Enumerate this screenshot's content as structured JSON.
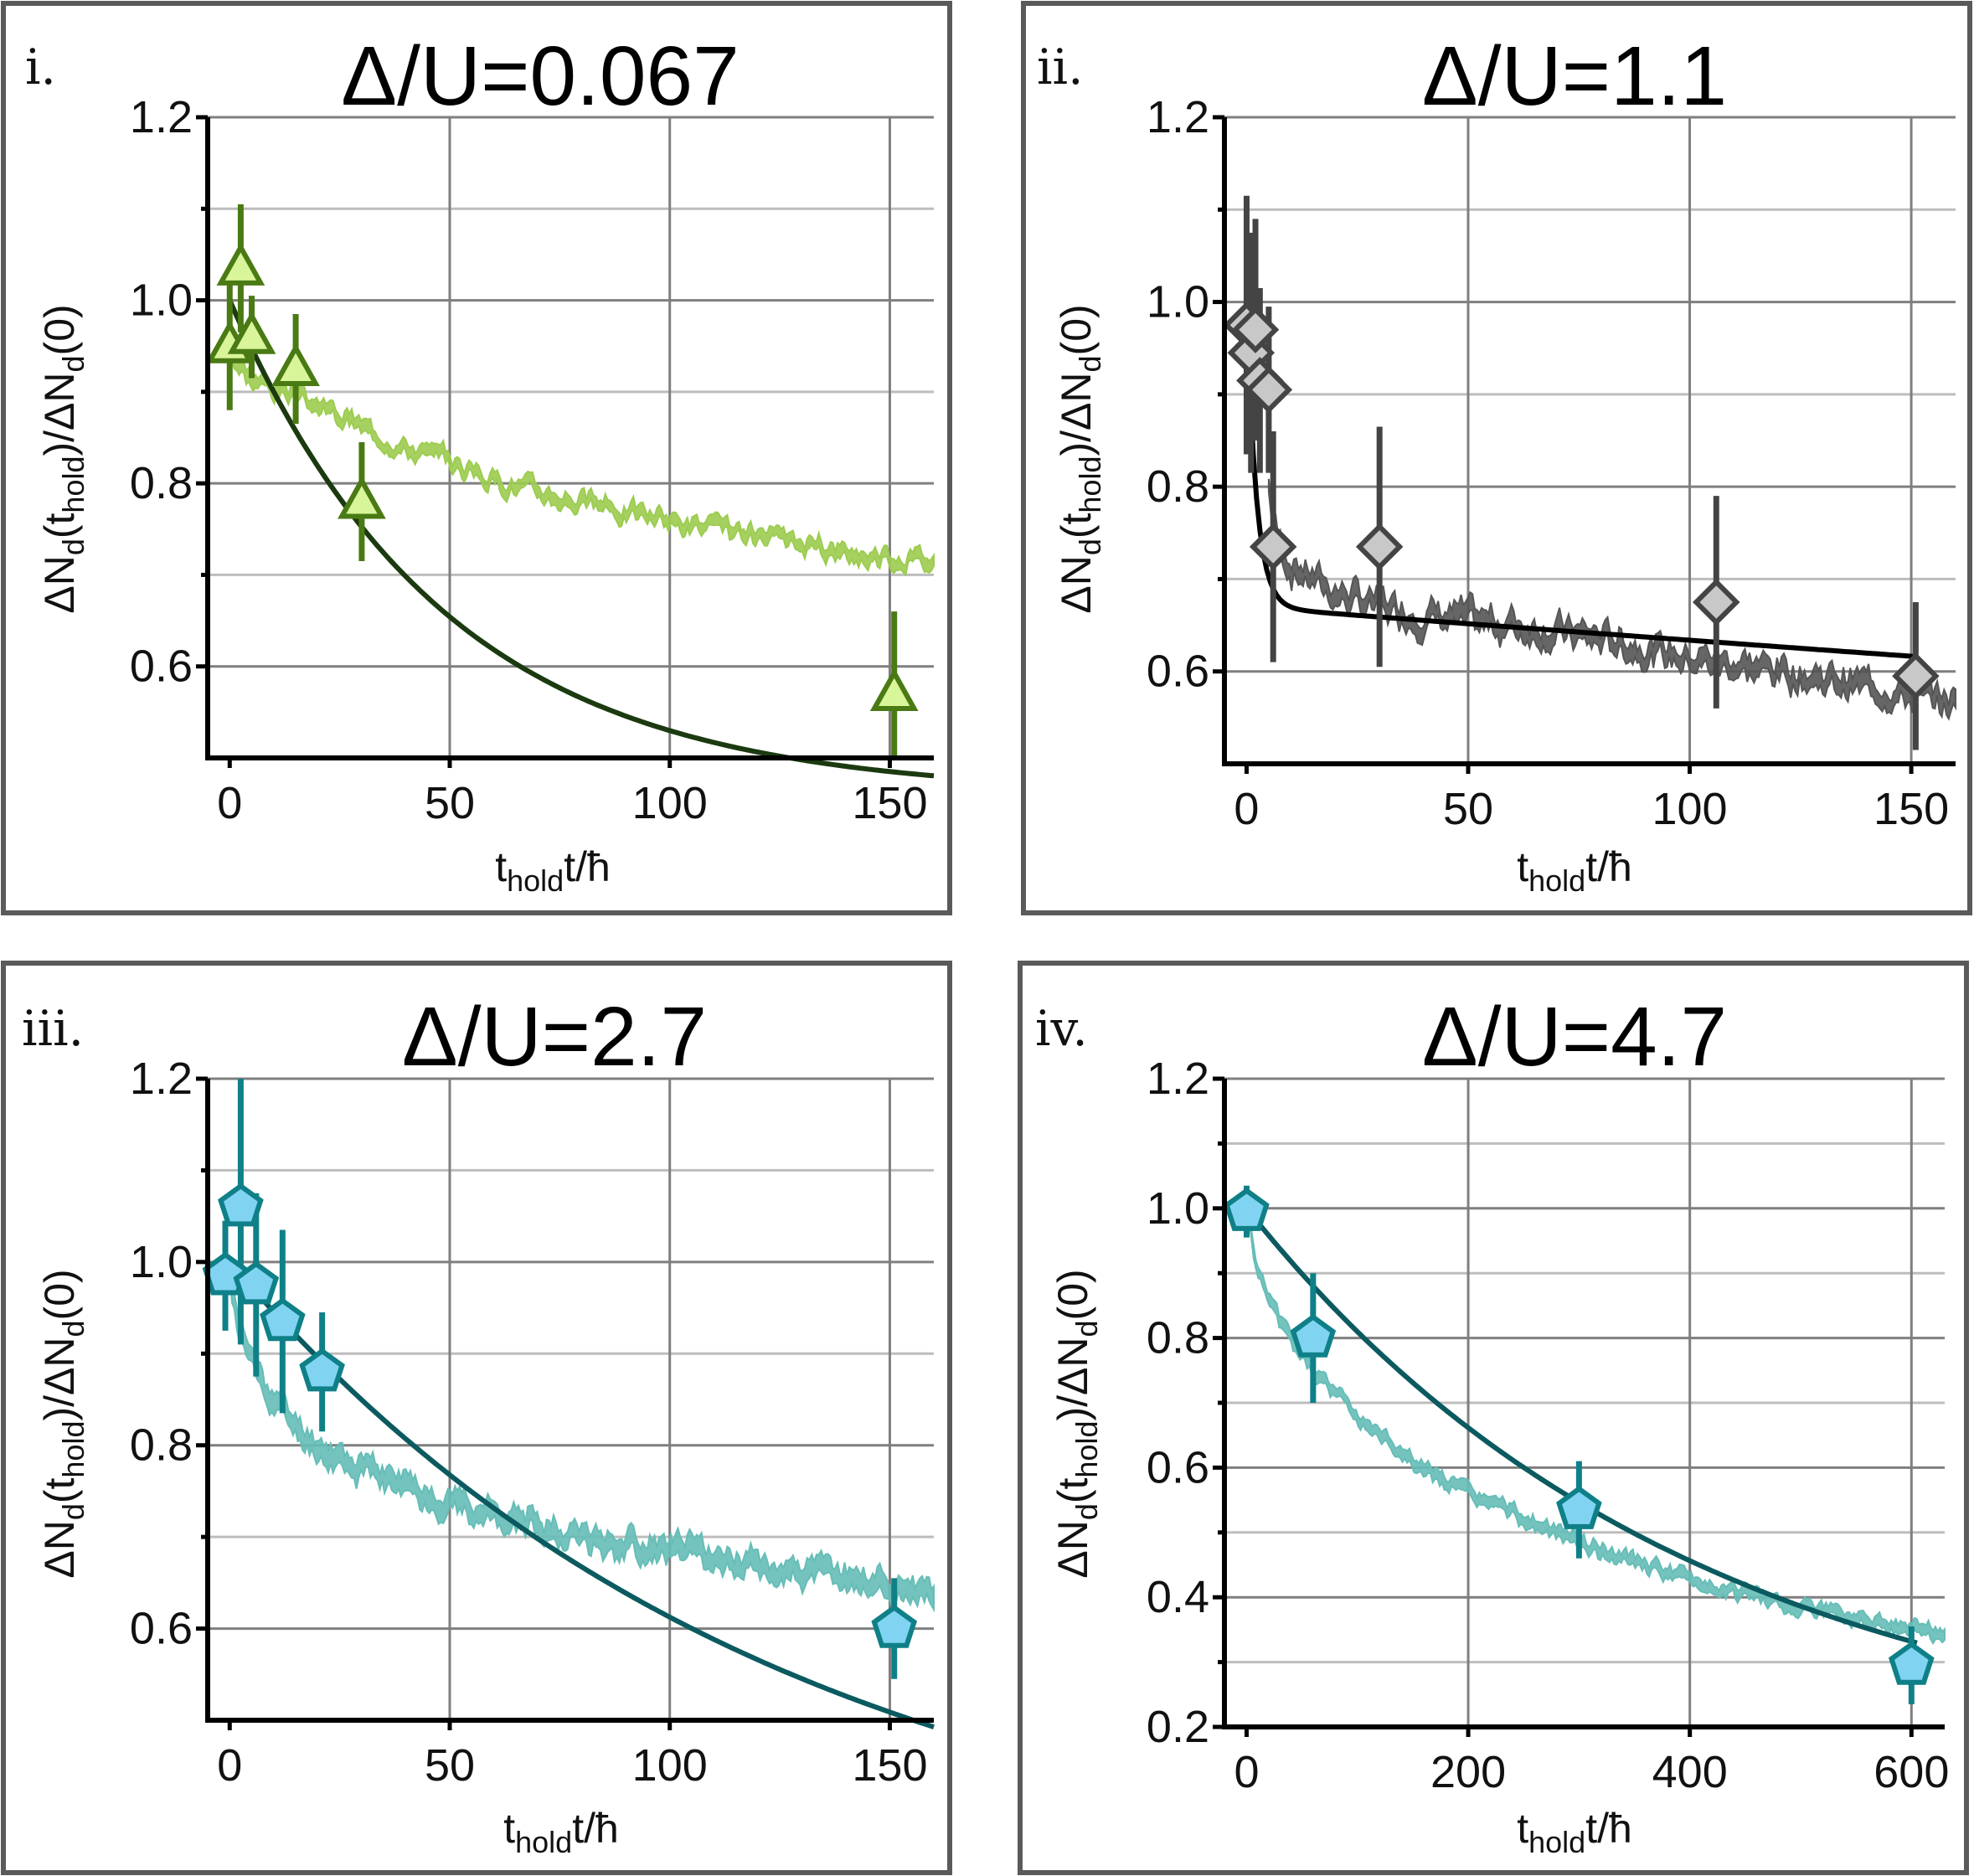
{
  "figure": {
    "ylabel": {
      "delta": "ΔN",
      "d1": "d",
      "open": "(t",
      "hold": "hold",
      "mid": ")/ΔN",
      "d2": "d",
      "close": "(0)"
    },
    "xlabel": {
      "t": "t",
      "hold": "hold",
      "rest": "t/ħ"
    }
  },
  "chart_data": [
    {
      "type": "scatter",
      "label": "i.",
      "title": "Δ/U=0.067",
      "xlim": [
        -5,
        160
      ],
      "ylim": [
        0.5,
        1.2
      ],
      "xticks": [
        0,
        50,
        100,
        150
      ],
      "xtick_labels": [
        "0",
        "50",
        "100",
        "150"
      ],
      "yticks": [
        0.6,
        0.8,
        1.0,
        1.2
      ],
      "ytick_labels": [
        "0.6",
        "0.8",
        "1.0",
        "1.2"
      ],
      "yminor": [
        0.7,
        0.9,
        1.1
      ],
      "colors": {
        "fill": "#d8f59a",
        "edge": "#4a7a14",
        "fit": "#1b3a10",
        "band": "#9ccc50"
      },
      "marker": "triangle",
      "points": [
        {
          "x": 0,
          "y": 0.95,
          "err": 0.07
        },
        {
          "x": 2.5,
          "y": 1.035,
          "err": 0.07
        },
        {
          "x": 5,
          "y": 0.96,
          "err": 0.045
        },
        {
          "x": 15,
          "y": 0.925,
          "err": 0.06
        },
        {
          "x": 30,
          "y": 0.78,
          "err": 0.065
        },
        {
          "x": 151,
          "y": 0.57,
          "err": 0.09
        }
      ],
      "fit": {
        "kind": "exp",
        "A": 0.54,
        "tau": 48.9,
        "C": 0.46
      },
      "simulation": {
        "x": [
          0,
          2,
          5,
          10,
          20,
          40,
          60,
          80,
          100,
          120,
          140,
          160
        ],
        "y": [
          0.95,
          0.93,
          0.915,
          0.905,
          0.885,
          0.84,
          0.805,
          0.78,
          0.76,
          0.74,
          0.725,
          0.715
        ],
        "noise": 0.008,
        "width": 0.012,
        "seed": 3
      }
    },
    {
      "type": "scatter",
      "label": "ii.",
      "title": "Δ/U=1.1",
      "xlim": [
        -5,
        160
      ],
      "ylim": [
        0.5,
        1.2
      ],
      "xticks": [
        0,
        50,
        100,
        150
      ],
      "xtick_labels": [
        "0",
        "50",
        "100",
        "150"
      ],
      "yticks": [
        0.6,
        0.8,
        1.0,
        1.2
      ],
      "ytick_labels": [
        "0.6",
        "0.8",
        "1.0",
        "1.2"
      ],
      "yminor": [
        0.7,
        0.9,
        1.1
      ],
      "colors": {
        "fill": "#c8c8c8",
        "edge": "#444444",
        "fit": "#000000",
        "band": "#555555"
      },
      "marker": "diamond",
      "points": [
        {
          "x": 0,
          "y": 0.975,
          "err": 0.14
        },
        {
          "x": 1,
          "y": 0.945,
          "err": 0.13
        },
        {
          "x": 2,
          "y": 0.97,
          "err": 0.12
        },
        {
          "x": 3,
          "y": 0.915,
          "err": 0.1
        },
        {
          "x": 5,
          "y": 0.905,
          "err": 0.09
        },
        {
          "x": 6,
          "y": 0.735,
          "err": 0.125
        },
        {
          "x": 30,
          "y": 0.735,
          "err": 0.13
        },
        {
          "x": 106,
          "y": 0.675,
          "err": 0.115
        },
        {
          "x": 151,
          "y": 0.595,
          "err": 0.08
        }
      ],
      "fit": {
        "kind": "dexp",
        "A1": 0.33,
        "tau1": 2.2,
        "A2": 0.67,
        "tau2": 1800,
        "C": 0
      },
      "simulation": {
        "x": [
          5,
          7,
          10,
          15,
          20,
          30,
          40,
          60,
          80,
          100,
          120,
          140,
          160
        ],
        "y": [
          0.8,
          0.74,
          0.715,
          0.7,
          0.685,
          0.67,
          0.66,
          0.65,
          0.635,
          0.615,
          0.6,
          0.585,
          0.565
        ],
        "noise": 0.012,
        "width": 0.018,
        "seed": 7
      }
    },
    {
      "type": "scatter",
      "label": "iii.",
      "title": "Δ/U=2.7",
      "xlim": [
        -5,
        160
      ],
      "ylim": [
        0.5,
        1.2
      ],
      "xticks": [
        0,
        50,
        100,
        150
      ],
      "xtick_labels": [
        "0",
        "50",
        "100",
        "150"
      ],
      "yticks": [
        0.6,
        0.8,
        1.0,
        1.2
      ],
      "ytick_labels": [
        "0.6",
        "0.8",
        "1.0",
        "1.2"
      ],
      "yminor": [
        0.7,
        0.9,
        1.1
      ],
      "colors": {
        "fill": "#80d4f2",
        "edge": "#0f8087",
        "fit": "#0b5a60",
        "band": "#66bdb7"
      },
      "marker": "pentagon",
      "points": [
        {
          "x": -1,
          "y": 0.985,
          "err": 0.06
        },
        {
          "x": 2.5,
          "y": 1.06,
          "err": 0.15
        },
        {
          "x": 6,
          "y": 0.975,
          "err": 0.1
        },
        {
          "x": 12,
          "y": 0.935,
          "err": 0.1
        },
        {
          "x": 21,
          "y": 0.88,
          "err": 0.065
        },
        {
          "x": 151,
          "y": 0.6,
          "err": 0.055
        }
      ],
      "fit": {
        "kind": "exp",
        "A": 0.7,
        "tau": 124.0,
        "C": 0.3
      },
      "simulation": {
        "x": [
          0,
          2,
          5,
          10,
          15,
          20,
          30,
          40,
          60,
          80,
          100,
          120,
          140,
          160
        ],
        "y": [
          0.98,
          0.93,
          0.89,
          0.85,
          0.82,
          0.8,
          0.775,
          0.755,
          0.725,
          0.7,
          0.685,
          0.67,
          0.655,
          0.64
        ],
        "noise": 0.01,
        "width": 0.02,
        "seed": 11
      }
    },
    {
      "type": "scatter",
      "label": "iv.",
      "title": "Δ/U=4.7",
      "xlim": [
        -20,
        630
      ],
      "ylim": [
        0.2,
        1.2
      ],
      "xticks": [
        0,
        200,
        400,
        600
      ],
      "xtick_labels": [
        "0",
        "200",
        "400",
        "600"
      ],
      "yticks": [
        0.2,
        0.4,
        0.6,
        0.8,
        1.0,
        1.2
      ],
      "ytick_labels": [
        "0.2",
        "0.4",
        "0.6",
        "0.8",
        "1.0",
        "1.2"
      ],
      "yminor": [
        0.3,
        0.5,
        0.7,
        0.9,
        1.1
      ],
      "colors": {
        "fill": "#80d4f2",
        "edge": "#0f8087",
        "fit": "#0b5a60",
        "band": "#66bdb7"
      },
      "marker": "pentagon",
      "points": [
        {
          "x": 0,
          "y": 0.995,
          "err": 0.04
        },
        {
          "x": 60,
          "y": 0.8,
          "err": 0.1
        },
        {
          "x": 300,
          "y": 0.535,
          "err": 0.075
        },
        {
          "x": 600,
          "y": 0.295,
          "err": 0.06
        }
      ],
      "fit": {
        "kind": "exp",
        "A": 0.86,
        "tau": 400.0,
        "C": 0.14
      },
      "simulation": {
        "x": [
          0,
          10,
          30,
          60,
          100,
          150,
          200,
          250,
          300,
          350,
          400,
          450,
          500,
          550,
          600,
          630
        ],
        "y": [
          1.0,
          0.9,
          0.82,
          0.75,
          0.68,
          0.61,
          0.56,
          0.52,
          0.485,
          0.455,
          0.425,
          0.405,
          0.385,
          0.37,
          0.355,
          0.345
        ],
        "noise": 0.008,
        "width": 0.016,
        "seed": 5
      }
    }
  ]
}
